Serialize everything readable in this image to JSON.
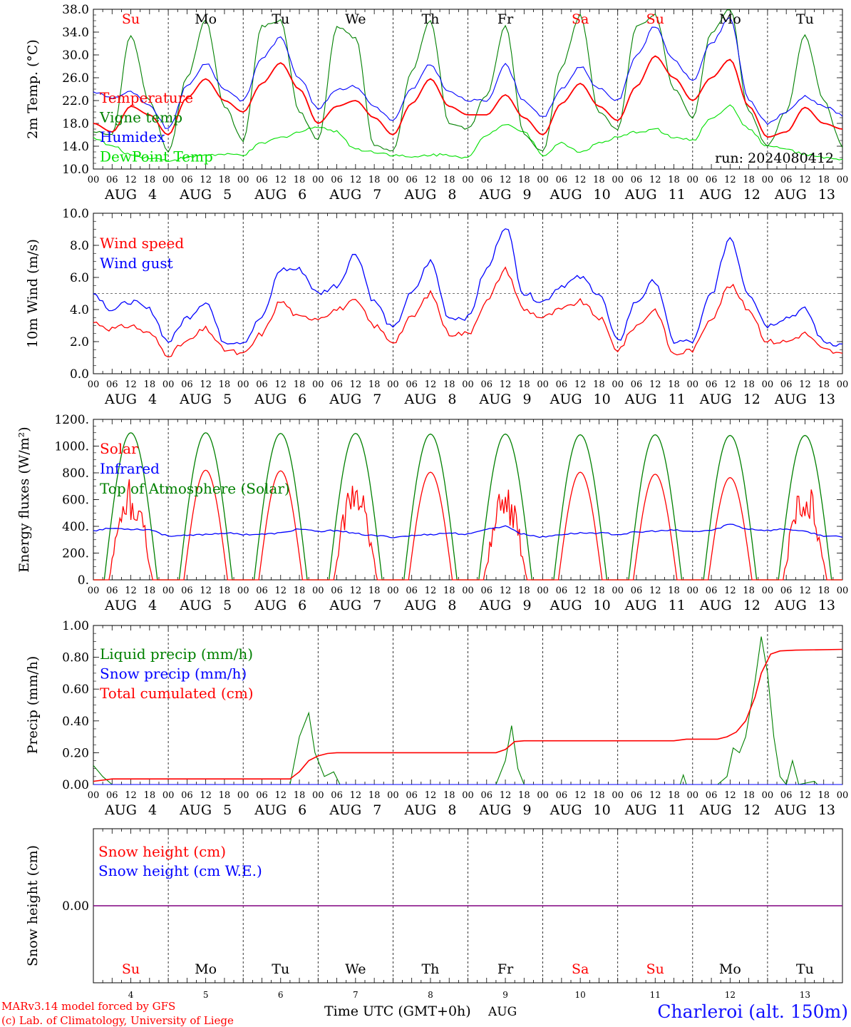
{
  "run_label": "run: 2024080412",
  "footer": {
    "model_line": "MARv3.14 model forced by GFS",
    "credit_line": "(c) Lab. of Climatology, University of Liege",
    "time_axis_label": "Time UTC (GMT+0h)",
    "month_label": "AUG",
    "station_label": "Charleroi (alt. 150m)"
  },
  "colors": {
    "temperature": "#ff0000",
    "vigne": "#008000",
    "humidex": "#0000ff",
    "dewpoint": "#00e000",
    "weekend": "#ff0000",
    "weekday": "#000000",
    "station": "#1010ff",
    "credit": "#ff0000"
  },
  "chart_data": [
    {
      "type": "line",
      "ylabel": "2m Temp. (°C)",
      "ylim": [
        10.0,
        38.0
      ],
      "yticks": [
        "10.0",
        "14.0",
        "18.0",
        "22.0",
        "26.0",
        "30.0",
        "34.0",
        "38.0"
      ],
      "hour_ticks": [
        "00",
        "06",
        "12",
        "18"
      ],
      "days": [
        {
          "day": "4",
          "weekday": "Su"
        },
        {
          "day": "5",
          "weekday": "Mo"
        },
        {
          "day": "6",
          "weekday": "Tu"
        },
        {
          "day": "7",
          "weekday": "We"
        },
        {
          "day": "8",
          "weekday": "Th"
        },
        {
          "day": "9",
          "weekday": "Fr"
        },
        {
          "day": "10",
          "weekday": "Sa"
        },
        {
          "day": "11",
          "weekday": "Su"
        },
        {
          "day": "12",
          "weekday": "Mo"
        },
        {
          "day": "13",
          "weekday": "Tu"
        }
      ],
      "x_hours": [
        0,
        6,
        12,
        18,
        24,
        30,
        36,
        42,
        48,
        54,
        60,
        66,
        72,
        78,
        84,
        90,
        96,
        102,
        108,
        114,
        120,
        126,
        132,
        138,
        144,
        150,
        156,
        162,
        168,
        174,
        180,
        186,
        192,
        198,
        204,
        210,
        216,
        222,
        228,
        234,
        240
      ],
      "series": [
        {
          "name": "Temperature",
          "color": "#ff0000",
          "values": [
            18.0,
            16.5,
            21.0,
            19.5,
            16.0,
            22.5,
            25.8,
            22.0,
            20.0,
            25.0,
            28.6,
            24.0,
            18.0,
            21.0,
            22.0,
            19.0,
            16.0,
            21.5,
            25.8,
            21.0,
            19.5,
            19.5,
            23.0,
            19.0,
            16.0,
            21.5,
            25.0,
            21.0,
            18.5,
            24.5,
            29.8,
            26.0,
            22.0,
            26.0,
            29.2,
            21.0,
            15.6,
            16.5,
            20.8,
            18.0,
            17.0
          ]
        },
        {
          "name": "Vigne temp",
          "color": "#008000",
          "values": [
            16.5,
            16.0,
            33.5,
            22.0,
            13.0,
            26.0,
            36.0,
            21.0,
            15.0,
            35.0,
            36.0,
            20.0,
            15.0,
            35.0,
            33.0,
            14.0,
            13.0,
            27.0,
            36.0,
            18.0,
            17.0,
            23.0,
            35.0,
            16.0,
            13.0,
            28.0,
            37.0,
            20.0,
            17.0,
            35.0,
            37.0,
            24.0,
            19.0,
            34.0,
            38.0,
            20.0,
            14.0,
            20.0,
            33.5,
            22.0,
            14.0
          ]
        },
        {
          "name": "Humidex",
          "color": "#0000ff",
          "values": [
            23.5,
            22.5,
            23.5,
            21.0,
            17.0,
            24.5,
            28.5,
            24.0,
            22.0,
            29.5,
            33.0,
            26.0,
            20.5,
            24.0,
            24.5,
            21.0,
            18.5,
            24.0,
            28.3,
            23.5,
            22.0,
            22.0,
            28.3,
            22.0,
            19.0,
            24.0,
            28.0,
            24.0,
            22.0,
            30.0,
            35.0,
            29.0,
            25.5,
            32.0,
            36.5,
            22.0,
            18.0,
            20.0,
            22.8,
            21.0,
            19.5
          ]
        },
        {
          "name": "DewPoint Temp",
          "color": "#00e000",
          "values": [
            15.5,
            14.0,
            12.5,
            12.0,
            11.5,
            12.0,
            12.5,
            12.5,
            12.5,
            14.5,
            15.5,
            16.5,
            17.5,
            16.5,
            13.5,
            13.0,
            12.5,
            12.0,
            12.5,
            12.5,
            12.0,
            16.0,
            18.0,
            16.5,
            12.5,
            14.5,
            13.0,
            14.5,
            15.5,
            16.5,
            17.0,
            15.5,
            15.0,
            19.0,
            21.0,
            17.0,
            14.0,
            13.5,
            12.5,
            12.0,
            11.5
          ]
        }
      ]
    },
    {
      "type": "line",
      "ylabel": "10m Wind (m/s)",
      "ylim": [
        0.0,
        10.0
      ],
      "yticks": [
        "0.0",
        "2.0",
        "4.0",
        "6.0",
        "8.0",
        "10.0"
      ],
      "reference_line": 5.0,
      "x_hours": [
        0,
        6,
        12,
        18,
        24,
        30,
        36,
        42,
        48,
        54,
        60,
        66,
        72,
        78,
        84,
        90,
        96,
        102,
        108,
        114,
        120,
        126,
        132,
        138,
        144,
        150,
        156,
        162,
        168,
        174,
        180,
        186,
        192,
        198,
        204,
        210,
        216,
        222,
        228,
        234,
        240
      ],
      "series": [
        {
          "name": "Wind speed",
          "color": "#ff0000",
          "values": [
            3.2,
            2.8,
            3.0,
            2.5,
            1.2,
            2.0,
            2.8,
            1.5,
            1.2,
            2.5,
            4.5,
            3.5,
            3.5,
            4.0,
            4.5,
            3.0,
            2.0,
            3.5,
            5.0,
            2.5,
            2.5,
            4.5,
            6.5,
            4.0,
            3.5,
            4.0,
            4.5,
            3.5,
            1.5,
            3.0,
            4.0,
            1.2,
            1.5,
            3.5,
            5.5,
            4.0,
            2.0,
            2.0,
            2.5,
            1.5,
            1.2
          ]
        },
        {
          "name": "Wind gust",
          "color": "#0000ff",
          "values": [
            5.0,
            4.0,
            4.5,
            4.0,
            2.0,
            3.5,
            4.5,
            2.0,
            2.0,
            3.5,
            6.5,
            6.5,
            5.0,
            5.5,
            7.5,
            4.5,
            2.8,
            5.0,
            7.0,
            3.5,
            3.5,
            6.5,
            9.2,
            5.0,
            4.5,
            5.5,
            6.0,
            5.0,
            2.0,
            4.5,
            5.8,
            2.0,
            2.0,
            5.0,
            8.5,
            5.0,
            3.0,
            3.5,
            4.0,
            2.0,
            1.8
          ]
        }
      ]
    },
    {
      "type": "line",
      "ylabel": "Energy fluxes (W/m²)",
      "ylim": [
        0,
        1200
      ],
      "yticks": [
        "0.",
        "200.",
        "400.",
        "600.",
        "800.",
        "1000.",
        "1200."
      ],
      "series": [
        {
          "name": "Solar",
          "color": "#ff0000",
          "daily_peaks": [
            790,
            820,
            815,
            830,
            805,
            735,
            805,
            790,
            765,
            800
          ]
        },
        {
          "name": "Infrared",
          "color": "#0000ff",
          "values": [
            370,
            385,
            380,
            375,
            330,
            330,
            340,
            350,
            340,
            340,
            350,
            380,
            360,
            370,
            345,
            330,
            320,
            330,
            340,
            350,
            340,
            380,
            400,
            340,
            320,
            340,
            350,
            350,
            340,
            355,
            365,
            370,
            360,
            370,
            415,
            380,
            370,
            380,
            360,
            330,
            320
          ]
        },
        {
          "name": "Top of Atmosphere (Solar)",
          "color": "#008000",
          "daily_peaks": [
            1100,
            1100,
            1095,
            1095,
            1090,
            1090,
            1085,
            1085,
            1080,
            1080
          ]
        }
      ]
    },
    {
      "type": "line",
      "ylabel": "Precip (mm/h)",
      "ylim": [
        0.0,
        1.0
      ],
      "yticks": [
        "0.00",
        "0.20",
        "0.40",
        "0.60",
        "0.80",
        "1.00"
      ],
      "series": [
        {
          "name": "Liquid precip (mm/h)",
          "color": "#008000",
          "points": [
            [
              0,
              0.12
            ],
            [
              3,
              0.05
            ],
            [
              6,
              0.0
            ],
            [
              63,
              0.0
            ],
            [
              66,
              0.3
            ],
            [
              69,
              0.45
            ],
            [
              71,
              0.2
            ],
            [
              74,
              0.05
            ],
            [
              77,
              0.08
            ],
            [
              79,
              0.0
            ],
            [
              129,
              0.0
            ],
            [
              132,
              0.15
            ],
            [
              134,
              0.37
            ],
            [
              136,
              0.1
            ],
            [
              138,
              0.0
            ],
            [
              188,
              0.0
            ],
            [
              189,
              0.06
            ],
            [
              190,
              0.0
            ],
            [
              200,
              0.0
            ],
            [
              203,
              0.05
            ],
            [
              205,
              0.23
            ],
            [
              207,
              0.2
            ],
            [
              209,
              0.3
            ],
            [
              212,
              0.65
            ],
            [
              214,
              0.93
            ],
            [
              216,
              0.7
            ],
            [
              218,
              0.3
            ],
            [
              220,
              0.05
            ],
            [
              222,
              0.0
            ],
            [
              224,
              0.15
            ],
            [
              226,
              0.0
            ],
            [
              231,
              0.02
            ],
            [
              232,
              0.0
            ],
            [
              240,
              0.0
            ]
          ]
        },
        {
          "name": "Snow precip (mm/h)",
          "color": "#0000ff",
          "points": [
            [
              0,
              0.0
            ],
            [
              240,
              0.0
            ]
          ]
        },
        {
          "name": "Total cumulated (cm)",
          "color": "#ff0000",
          "points": [
            [
              0,
              0.02
            ],
            [
              6,
              0.035
            ],
            [
              63,
              0.035
            ],
            [
              66,
              0.08
            ],
            [
              69,
              0.15
            ],
            [
              72,
              0.18
            ],
            [
              75,
              0.195
            ],
            [
              78,
              0.2
            ],
            [
              129,
              0.2
            ],
            [
              132,
              0.22
            ],
            [
              135,
              0.27
            ],
            [
              138,
              0.275
            ],
            [
              186,
              0.275
            ],
            [
              190,
              0.285
            ],
            [
              200,
              0.285
            ],
            [
              203,
              0.3
            ],
            [
              206,
              0.33
            ],
            [
              209,
              0.4
            ],
            [
              212,
              0.55
            ],
            [
              214,
              0.7
            ],
            [
              217,
              0.82
            ],
            [
              220,
              0.84
            ],
            [
              225,
              0.845
            ],
            [
              240,
              0.85
            ]
          ]
        }
      ]
    },
    {
      "type": "line",
      "ylabel": "Snow height (cm)",
      "yticks": [
        "0.00"
      ],
      "series": [
        {
          "name": "Snow height (cm)",
          "color": "#ff0000",
          "values": [
            0.0,
            0.0
          ]
        },
        {
          "name": "Snow height (cm W.E.)",
          "color": "#0000ff",
          "values": [
            0.0,
            0.0
          ]
        }
      ]
    }
  ]
}
